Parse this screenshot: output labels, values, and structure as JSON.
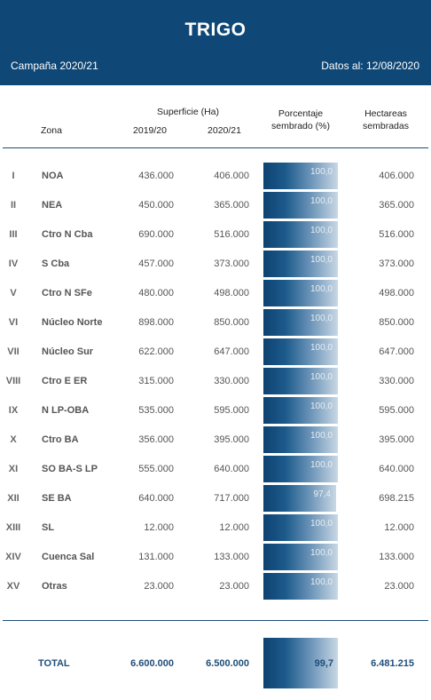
{
  "header": {
    "title": "TRIGO",
    "campaign": "Campaña 2020/21",
    "date": "Datos al: 12/08/2020"
  },
  "columns": {
    "zona": "Zona",
    "superficie": "Superficie (Ha)",
    "y1": "2019/20",
    "y2": "2020/21",
    "pct_line1": "Porcentaje",
    "pct_line2": "sembrado (%)",
    "ha_line1": "Hectareas",
    "ha_line2": "sembradas"
  },
  "rows": [
    {
      "num": "I",
      "zona": "NOA",
      "s1": "436.000",
      "s2": "406.000",
      "pct": "100,0",
      "pct_value": 100.0,
      "ha": "406.000"
    },
    {
      "num": "II",
      "zona": "NEA",
      "s1": "450.000",
      "s2": "365.000",
      "pct": "100,0",
      "pct_value": 100.0,
      "ha": "365.000"
    },
    {
      "num": "III",
      "zona": "Ctro N Cba",
      "s1": "690.000",
      "s2": "516.000",
      "pct": "100,0",
      "pct_value": 100.0,
      "ha": "516.000"
    },
    {
      "num": "IV",
      "zona": "S Cba",
      "s1": "457.000",
      "s2": "373.000",
      "pct": "100,0",
      "pct_value": 100.0,
      "ha": "373.000"
    },
    {
      "num": "V",
      "zona": "Ctro N SFe",
      "s1": "480.000",
      "s2": "498.000",
      "pct": "100,0",
      "pct_value": 100.0,
      "ha": "498.000"
    },
    {
      "num": "VI",
      "zona": "Núcleo Norte",
      "s1": "898.000",
      "s2": "850.000",
      "pct": "100,0",
      "pct_value": 100.0,
      "ha": "850.000"
    },
    {
      "num": "VII",
      "zona": "Núcleo Sur",
      "s1": "622.000",
      "s2": "647.000",
      "pct": "100,0",
      "pct_value": 100.0,
      "ha": "647.000"
    },
    {
      "num": "VIII",
      "zona": "Ctro E ER",
      "s1": "315.000",
      "s2": "330.000",
      "pct": "100,0",
      "pct_value": 100.0,
      "ha": "330.000"
    },
    {
      "num": "IX",
      "zona": "N LP-OBA",
      "s1": "535.000",
      "s2": "595.000",
      "pct": "100,0",
      "pct_value": 100.0,
      "ha": "595.000"
    },
    {
      "num": "X",
      "zona": "Ctro BA",
      "s1": "356.000",
      "s2": "395.000",
      "pct": "100,0",
      "pct_value": 100.0,
      "ha": "395.000"
    },
    {
      "num": "XI",
      "zona": "SO BA-S LP",
      "s1": "555.000",
      "s2": "640.000",
      "pct": "100,0",
      "pct_value": 100.0,
      "ha": "640.000"
    },
    {
      "num": "XII",
      "zona": "SE BA",
      "s1": "640.000",
      "s2": "717.000",
      "pct": "97,4",
      "pct_value": 97.4,
      "ha": "698.215"
    },
    {
      "num": "XIII",
      "zona": "SL",
      "s1": "12.000",
      "s2": "12.000",
      "pct": "100,0",
      "pct_value": 100.0,
      "ha": "12.000"
    },
    {
      "num": "XIV",
      "zona": "Cuenca Sal",
      "s1": "131.000",
      "s2": "133.000",
      "pct": "100,0",
      "pct_value": 100.0,
      "ha": "133.000"
    },
    {
      "num": "XV",
      "zona": "Otras",
      "s1": "23.000",
      "s2": "23.000",
      "pct": "100,0",
      "pct_value": 100.0,
      "ha": "23.000"
    }
  ],
  "total": {
    "label": "TOTAL",
    "s1": "6.600.000",
    "s2": "6.500.000",
    "pct": "99,7",
    "ha": "6.481.215"
  }
}
